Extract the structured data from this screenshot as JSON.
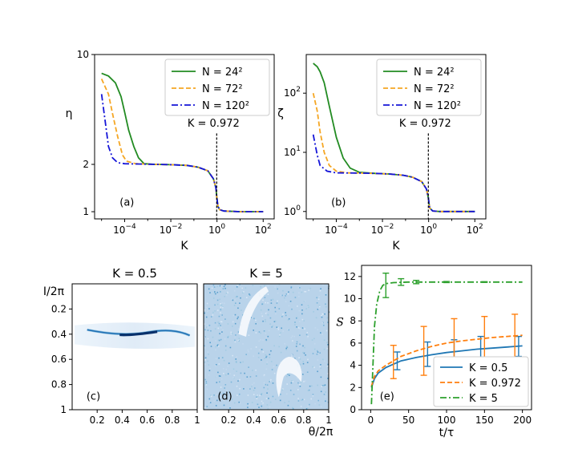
{
  "chart_data": [
    {
      "panel": "(a)",
      "type": "line",
      "xlabel": "K",
      "ylabel": "η",
      "xscale": "log",
      "yscale": "log",
      "xlim": [
        5e-06,
        300
      ],
      "ylim": [
        0.9,
        10
      ],
      "xticks": [
        {
          "v": 0.0001,
          "b": "10",
          "e": "−4"
        },
        {
          "v": 0.01,
          "b": "10",
          "e": "−2"
        },
        {
          "v": 1,
          "b": "10",
          "e": "0"
        },
        {
          "v": 100,
          "b": "10",
          "e": "2"
        }
      ],
      "yticks": [
        {
          "v": 1,
          "t": "1"
        },
        {
          "v": 2,
          "t": "2"
        },
        {
          "v": 10,
          "t": "10"
        }
      ],
      "annotation": {
        "text": "K = 0.972",
        "x": 0.972
      },
      "legend_position": "top-right",
      "series": [
        {
          "name": "N = 24²",
          "color": "#228b22",
          "dash": "solid",
          "points": [
            [
              1e-05,
              7.6
            ],
            [
              2e-05,
              7.3
            ],
            [
              4e-05,
              6.6
            ],
            [
              7e-05,
              5.4
            ],
            [
              0.0001,
              4.3
            ],
            [
              0.00015,
              3.3
            ],
            [
              0.00025,
              2.6
            ],
            [
              0.0004,
              2.2
            ],
            [
              0.0007,
              2.02
            ],
            [
              0.002,
              2.0
            ],
            [
              0.01,
              1.99
            ],
            [
              0.05,
              1.97
            ],
            [
              0.15,
              1.92
            ],
            [
              0.4,
              1.82
            ],
            [
              0.7,
              1.62
            ],
            [
              0.9,
              1.42
            ],
            [
              0.972,
              1.25
            ],
            [
              1.1,
              1.08
            ],
            [
              1.3,
              1.03
            ],
            [
              2,
              1.01
            ],
            [
              10,
              1.0
            ],
            [
              100,
              1.0
            ]
          ]
        },
        {
          "name": "N = 72²",
          "color": "#f5a623",
          "dash": "dashed",
          "points": [
            [
              1e-05,
              7.0
            ],
            [
              2e-05,
              5.6
            ],
            [
              3e-05,
              4.2
            ],
            [
              5e-05,
              3.0
            ],
            [
              8e-05,
              2.3
            ],
            [
              0.00012,
              2.1
            ],
            [
              0.0003,
              2.02
            ],
            [
              0.002,
              2.0
            ],
            [
              0.01,
              1.99
            ],
            [
              0.05,
              1.97
            ],
            [
              0.15,
              1.92
            ],
            [
              0.4,
              1.82
            ],
            [
              0.7,
              1.62
            ],
            [
              0.9,
              1.42
            ],
            [
              0.972,
              1.25
            ],
            [
              1.1,
              1.08
            ],
            [
              1.3,
              1.03
            ],
            [
              2,
              1.01
            ],
            [
              10,
              1.0
            ],
            [
              100,
              1.0
            ]
          ]
        },
        {
          "name": "N = 120²",
          "color": "#1515d8",
          "dash": "dashdot",
          "points": [
            [
              1e-05,
              5.6
            ],
            [
              1.5e-05,
              3.6
            ],
            [
              2e-05,
              2.6
            ],
            [
              3e-05,
              2.2
            ],
            [
              5e-05,
              2.05
            ],
            [
              0.0001,
              2.02
            ],
            [
              0.002,
              2.0
            ],
            [
              0.01,
              1.99
            ],
            [
              0.05,
              1.97
            ],
            [
              0.15,
              1.92
            ],
            [
              0.4,
              1.82
            ],
            [
              0.7,
              1.62
            ],
            [
              0.9,
              1.42
            ],
            [
              0.972,
              1.25
            ],
            [
              1.1,
              1.08
            ],
            [
              1.3,
              1.03
            ],
            [
              2,
              1.01
            ],
            [
              10,
              1.0
            ],
            [
              100,
              1.0
            ]
          ]
        }
      ]
    },
    {
      "panel": "(b)",
      "type": "line",
      "xlabel": "K",
      "ylabel": "ζ",
      "xscale": "log",
      "yscale": "log",
      "xlim": [
        5e-06,
        300
      ],
      "ylim": [
        0.75,
        450
      ],
      "xticks": [
        {
          "v": 0.0001,
          "b": "10",
          "e": "−4"
        },
        {
          "v": 0.01,
          "b": "10",
          "e": "−2"
        },
        {
          "v": 1,
          "b": "10",
          "e": "0"
        },
        {
          "v": 100,
          "b": "10",
          "e": "2"
        }
      ],
      "yticks": [
        {
          "v": 1,
          "b": "10",
          "e": "0"
        },
        {
          "v": 10,
          "b": "10",
          "e": "1"
        },
        {
          "v": 100,
          "b": "10",
          "e": "2"
        }
      ],
      "annotation": {
        "text": "K = 0.972",
        "x": 0.972
      },
      "legend_position": "top-right",
      "series": [
        {
          "name": "N = 24²",
          "color": "#228b22",
          "dash": "solid",
          "points": [
            [
              1e-05,
              320
            ],
            [
              1.5e-05,
              280
            ],
            [
              2e-05,
              230
            ],
            [
              3e-05,
              150
            ],
            [
              5e-05,
              60
            ],
            [
              0.0001,
              18
            ],
            [
              0.0002,
              8
            ],
            [
              0.0004,
              5.4
            ],
            [
              0.001,
              4.6
            ],
            [
              0.005,
              4.4
            ],
            [
              0.02,
              4.3
            ],
            [
              0.08,
              4.1
            ],
            [
              0.2,
              3.8
            ],
            [
              0.5,
              3.2
            ],
            [
              0.8,
              2.4
            ],
            [
              0.972,
              1.7
            ],
            [
              1.1,
              1.15
            ],
            [
              1.5,
              1.02
            ],
            [
              3,
              1.0
            ],
            [
              100,
              1.0
            ]
          ]
        },
        {
          "name": "N = 72²",
          "color": "#f5a623",
          "dash": "dashed",
          "points": [
            [
              1e-05,
              100
            ],
            [
              1.5e-05,
              50
            ],
            [
              2e-05,
              22
            ],
            [
              3e-05,
              10
            ],
            [
              5e-05,
              6
            ],
            [
              0.0001,
              4.8
            ],
            [
              0.0003,
              4.5
            ],
            [
              0.001,
              4.45
            ],
            [
              0.005,
              4.4
            ],
            [
              0.02,
              4.3
            ],
            [
              0.08,
              4.1
            ],
            [
              0.2,
              3.8
            ],
            [
              0.5,
              3.2
            ],
            [
              0.8,
              2.4
            ],
            [
              0.972,
              1.7
            ],
            [
              1.1,
              1.15
            ],
            [
              1.5,
              1.02
            ],
            [
              3,
              1.0
            ],
            [
              100,
              1.0
            ]
          ]
        },
        {
          "name": "N = 120²",
          "color": "#1515d8",
          "dash": "dashdot",
          "points": [
            [
              1e-05,
              20
            ],
            [
              1.5e-05,
              9
            ],
            [
              2e-05,
              6
            ],
            [
              4e-05,
              4.8
            ],
            [
              0.0001,
              4.5
            ],
            [
              0.001,
              4.45
            ],
            [
              0.005,
              4.4
            ],
            [
              0.02,
              4.3
            ],
            [
              0.08,
              4.1
            ],
            [
              0.2,
              3.8
            ],
            [
              0.5,
              3.2
            ],
            [
              0.8,
              2.4
            ],
            [
              0.972,
              1.7
            ],
            [
              1.1,
              1.15
            ],
            [
              1.5,
              1.02
            ],
            [
              3,
              1.0
            ],
            [
              100,
              1.0
            ]
          ]
        }
      ]
    },
    {
      "panel": "(c)",
      "type": "heatmap",
      "title": "K = 0.5",
      "ylabel": "I/2π",
      "xlim": [
        0,
        1
      ],
      "ylim": [
        1,
        0
      ],
      "xticks": [
        {
          "v": 0.2,
          "t": "0.2"
        },
        {
          "v": 0.4,
          "t": "0.4"
        },
        {
          "v": 0.6,
          "t": "0.6"
        },
        {
          "v": 0.8,
          "t": "0.8"
        },
        {
          "v": 1,
          "t": "1"
        }
      ],
      "yticks": [
        {
          "v": 0.2,
          "t": "0.2"
        },
        {
          "v": 0.4,
          "t": "0.4"
        },
        {
          "v": 0.6,
          "t": "0.6"
        },
        {
          "v": 0.8,
          "t": "0.8"
        },
        {
          "v": 1,
          "t": "1"
        }
      ],
      "colormap": "Blues"
    },
    {
      "panel": "(d)",
      "type": "heatmap",
      "title": "K = 5",
      "xlabel": "θ/2π",
      "xlim": [
        0,
        1
      ],
      "ylim": [
        1,
        0
      ],
      "xticks": [
        {
          "v": 0.2,
          "t": "0.2"
        },
        {
          "v": 0.4,
          "t": "0.4"
        },
        {
          "v": 0.6,
          "t": "0.6"
        },
        {
          "v": 0.8,
          "t": "0.8"
        },
        {
          "v": 1,
          "t": "1"
        }
      ],
      "colormap": "Blues"
    },
    {
      "panel": "(e)",
      "type": "line",
      "xlabel": "t/τ",
      "ylabel": "S",
      "xlim": [
        -12,
        212
      ],
      "ylim": [
        0,
        13
      ],
      "xticks": [
        {
          "v": 0,
          "t": "0"
        },
        {
          "v": 50,
          "t": "50"
        },
        {
          "v": 100,
          "t": "100"
        },
        {
          "v": 150,
          "t": "150"
        },
        {
          "v": 200,
          "t": "200"
        }
      ],
      "yticks": [
        {
          "v": 0,
          "t": "0"
        },
        {
          "v": 2,
          "t": "2"
        },
        {
          "v": 4,
          "t": "4"
        },
        {
          "v": 6,
          "t": "6"
        },
        {
          "v": 8,
          "t": "8"
        },
        {
          "v": 10,
          "t": "10"
        },
        {
          "v": 12,
          "t": "12"
        }
      ],
      "legend_position": "bottom-right",
      "series": [
        {
          "name": "K = 0.5",
          "color": "#1f77b4",
          "dash": "solid",
          "points": [
            [
              1,
              2.0
            ],
            [
              5,
              2.8
            ],
            [
              10,
              3.3
            ],
            [
              20,
              3.8
            ],
            [
              30,
              4.1
            ],
            [
              40,
              4.4
            ],
            [
              60,
              4.7
            ],
            [
              80,
              4.95
            ],
            [
              100,
              5.15
            ],
            [
              120,
              5.3
            ],
            [
              140,
              5.45
            ],
            [
              160,
              5.55
            ],
            [
              180,
              5.65
            ],
            [
              200,
              5.75
            ]
          ],
          "errorbars": [
            [
              35,
              4.4,
              0.8
            ],
            [
              75,
              5.0,
              1.1
            ],
            [
              110,
              5.2,
              1.1
            ],
            [
              145,
              5.5,
              1.1
            ],
            [
              195,
              5.7,
              0.9
            ]
          ]
        },
        {
          "name": "K = 0.972",
          "color": "#ff7f0e",
          "dash": "dashed",
          "points": [
            [
              1,
              2.1
            ],
            [
              5,
              3.0
            ],
            [
              10,
              3.5
            ],
            [
              20,
              4.0
            ],
            [
              30,
              4.4
            ],
            [
              40,
              4.8
            ],
            [
              60,
              5.3
            ],
            [
              80,
              5.7
            ],
            [
              100,
              6.0
            ],
            [
              120,
              6.2
            ],
            [
              140,
              6.35
            ],
            [
              160,
              6.5
            ],
            [
              180,
              6.6
            ],
            [
              200,
              6.7
            ]
          ],
          "errorbars": [
            [
              30,
              4.3,
              1.5
            ],
            [
              70,
              5.3,
              2.2
            ],
            [
              110,
              6.0,
              2.2
            ],
            [
              150,
              6.5,
              1.9
            ],
            [
              190,
              6.6,
              2.0
            ]
          ]
        },
        {
          "name": "K = 5",
          "color": "#2ca02c",
          "dash": "dashdot",
          "points": [
            [
              1,
              0.5
            ],
            [
              3,
              4
            ],
            [
              5,
              7.5
            ],
            [
              8,
              9.5
            ],
            [
              12,
              10.7
            ],
            [
              16,
              11.2
            ],
            [
              20,
              11.35
            ],
            [
              30,
              11.45
            ],
            [
              50,
              11.5
            ],
            [
              100,
              11.5
            ],
            [
              150,
              11.5
            ],
            [
              200,
              11.5
            ]
          ],
          "errorbars": [
            [
              20,
              11.2,
              1.1
            ],
            [
              40,
              11.5,
              0.3
            ],
            [
              60,
              11.5,
              0.15
            ],
            [
              100,
              11.5,
              0.05
            ],
            [
              150,
              11.5,
              0.03
            ]
          ]
        }
      ]
    }
  ]
}
